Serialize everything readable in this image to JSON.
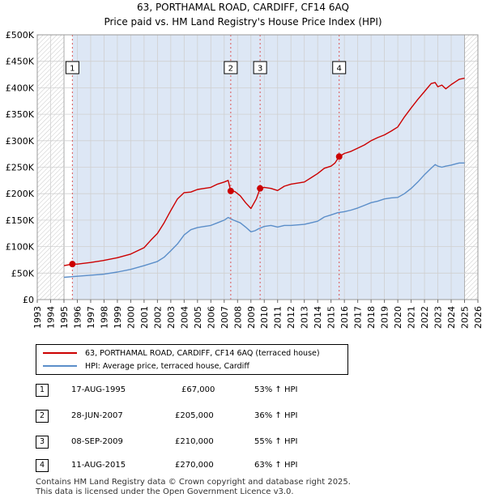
{
  "title_line1": "63, PORTHAMAL ROAD, CARDIFF, CF14 6AQ",
  "title_line2": "Price paid vs. HM Land Registry's House Price Index (HPI)",
  "chart_data": {
    "type": "line",
    "x_range": [
      1993,
      2026
    ],
    "y_range": [
      0,
      500000
    ],
    "y_ticks": [
      {
        "value": 0,
        "label": "£0"
      },
      {
        "value": 50000,
        "label": "£50K"
      },
      {
        "value": 100000,
        "label": "£100K"
      },
      {
        "value": 150000,
        "label": "£150K"
      },
      {
        "value": 200000,
        "label": "£200K"
      },
      {
        "value": 250000,
        "label": "£250K"
      },
      {
        "value": 300000,
        "label": "£300K"
      },
      {
        "value": 350000,
        "label": "£350K"
      },
      {
        "value": 400000,
        "label": "£400K"
      },
      {
        "value": 450000,
        "label": "£450K"
      },
      {
        "value": 500000,
        "label": "£500K"
      }
    ],
    "x_ticks": [
      "1993",
      "1994",
      "1995",
      "1996",
      "1997",
      "1998",
      "1999",
      "2000",
      "2001",
      "2002",
      "2003",
      "2004",
      "2005",
      "2006",
      "2007",
      "2008",
      "2009",
      "2010",
      "2011",
      "2012",
      "2013",
      "2014",
      "2015",
      "2016",
      "2017",
      "2018",
      "2019",
      "2020",
      "2021",
      "2022",
      "2023",
      "2024",
      "2025",
      "2026"
    ],
    "hatched_ranges": [
      [
        1993,
        1995.0
      ],
      [
        2025.0,
        2026
      ]
    ],
    "shaded_range": [
      1995.63,
      2025.0
    ],
    "series": [
      {
        "name": "63, PORTHAMAL ROAD, CARDIFF, CF14 6AQ (terraced house)",
        "color": "#cc0000",
        "x": [
          1995.0,
          1995.63,
          1996,
          1997,
          1998,
          1999,
          2000,
          2001,
          2001.5,
          2002,
          2002.5,
          2003,
          2003.5,
          2004,
          2004.5,
          2005,
          2005.5,
          2006,
          2006.5,
          2007,
          2007.3,
          2007.49,
          2007.8,
          2008.2,
          2008.6,
          2009.0,
          2009.4,
          2009.69,
          2010,
          2010.5,
          2011,
          2011.5,
          2012,
          2013,
          2013.5,
          2014,
          2014.5,
          2015,
          2015.3,
          2015.61,
          2016,
          2016.5,
          2017,
          2017.5,
          2018,
          2018.5,
          2019,
          2019.5,
          2020,
          2020.5,
          2021,
          2021.5,
          2022,
          2022.5,
          2022.8,
          2023,
          2023.3,
          2023.6,
          2024,
          2024.3,
          2024.6,
          2025.0
        ],
        "values": [
          64000,
          67000,
          67000,
          70000,
          74000,
          79000,
          86000,
          98000,
          112000,
          125000,
          145000,
          168000,
          190000,
          202000,
          203000,
          208000,
          210000,
          212000,
          218000,
          222000,
          225000,
          205000,
          204000,
          196000,
          183000,
          172000,
          190000,
          210000,
          212000,
          210000,
          206000,
          214000,
          218000,
          222000,
          230000,
          238000,
          248000,
          252000,
          258000,
          270000,
          276000,
          280000,
          286000,
          292000,
          300000,
          306000,
          311000,
          318000,
          326000,
          345000,
          362000,
          378000,
          393000,
          408000,
          410000,
          402000,
          405000,
          398000,
          406000,
          411000,
          416000,
          418000
        ]
      },
      {
        "name": "HPI: Average price, terraced house, Cardiff",
        "color": "#5b8ec9",
        "x": [
          1995.0,
          1996,
          1997,
          1998,
          1999,
          2000,
          2001,
          2002,
          2002.5,
          2003,
          2003.5,
          2004,
          2004.5,
          2005,
          2005.5,
          2006,
          2006.5,
          2007,
          2007.3,
          2007.7,
          2008.2,
          2008.6,
          2009.0,
          2009.3,
          2009.6,
          2010,
          2010.5,
          2011,
          2011.5,
          2012,
          2013,
          2014,
          2014.5,
          2015,
          2015.5,
          2016,
          2016.5,
          2017,
          2017.5,
          2018,
          2018.5,
          2019,
          2019.5,
          2020,
          2020.5,
          2021,
          2021.5,
          2022,
          2022.5,
          2022.8,
          2023,
          2023.3,
          2023.6,
          2024,
          2024.3,
          2024.6,
          2025.0
        ],
        "values": [
          42000,
          44000,
          46000,
          48000,
          52000,
          57000,
          64000,
          72000,
          80000,
          92000,
          105000,
          122000,
          132000,
          136000,
          138000,
          140000,
          145000,
          150000,
          155000,
          150000,
          145000,
          137000,
          128000,
          130000,
          134000,
          138000,
          140000,
          137000,
          140000,
          140000,
          142000,
          148000,
          156000,
          160000,
          164000,
          166000,
          169000,
          173000,
          178000,
          183000,
          186000,
          190000,
          192000,
          193000,
          200000,
          210000,
          222000,
          236000,
          248000,
          255000,
          252000,
          250000,
          252000,
          254000,
          256000,
          258000,
          258000
        ]
      }
    ],
    "sale_markers": [
      {
        "num": "1",
        "x": 1995.63,
        "value": 67000
      },
      {
        "num": "2",
        "x": 2007.49,
        "value": 205000
      },
      {
        "num": "3",
        "x": 2009.69,
        "value": 210000
      },
      {
        "num": "4",
        "x": 2015.61,
        "value": 270000
      }
    ]
  },
  "legend": {
    "property_label": "63, PORTHAMAL ROAD, CARDIFF, CF14 6AQ (terraced house)",
    "hpi_label": "HPI: Average price, terraced house, Cardiff",
    "property_color": "#cc0000",
    "hpi_color": "#5b8ec9"
  },
  "sales": [
    {
      "num": "1",
      "date": "17-AUG-1995",
      "price": "£67,000",
      "hpi": "53% ↑ HPI"
    },
    {
      "num": "2",
      "date": "28-JUN-2007",
      "price": "£205,000",
      "hpi": "36% ↑ HPI"
    },
    {
      "num": "3",
      "date": "08-SEP-2009",
      "price": "£210,000",
      "hpi": "55% ↑ HPI"
    },
    {
      "num": "4",
      "date": "11-AUG-2015",
      "price": "£270,000",
      "hpi": "63% ↑ HPI"
    }
  ],
  "footer_line1": "Contains HM Land Registry data © Crown copyright and database right 2025.",
  "footer_line2": "This data is licensed under the Open Government Licence v3.0."
}
